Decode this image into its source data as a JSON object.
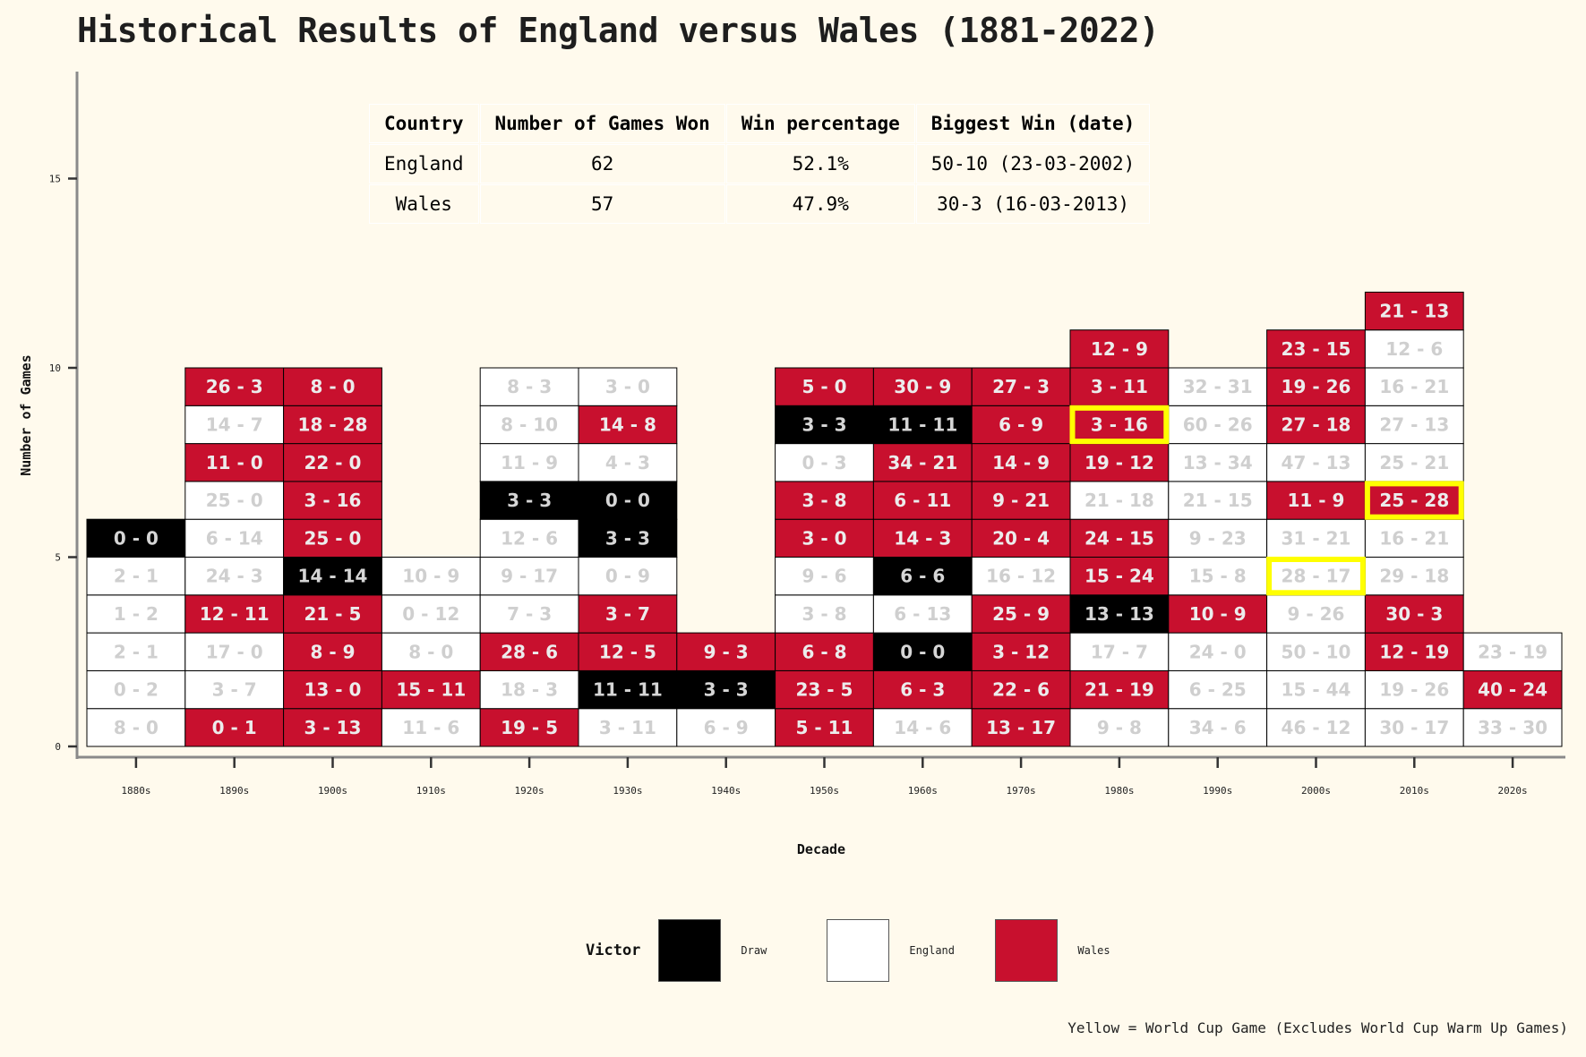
{
  "title": "Historical Results of England versus Wales (1881-2022)",
  "colors": {
    "background": "#fffaed",
    "draw": "#000000",
    "england": "#ffffff",
    "wales": "#c8102e",
    "world_cup_highlight": "#ffff00",
    "label_on_dark": "#ececec",
    "label_on_white": "#cfcfcf",
    "label_on_draw": "#d6d6d6"
  },
  "summary_table": {
    "headers": [
      "Country",
      "Number of Games Won",
      "Win percentage",
      "Biggest Win (date)"
    ],
    "rows": [
      [
        "England",
        "62",
        "52.1%",
        "50-10 (23-03-2002)"
      ],
      [
        "Wales",
        "57",
        "47.9%",
        "30-3 (16-03-2013)"
      ]
    ]
  },
  "legend": {
    "title": "Victor",
    "items": [
      {
        "label": "Draw",
        "key": "D"
      },
      {
        "label": "England",
        "key": "E"
      },
      {
        "label": "Wales",
        "key": "W"
      }
    ]
  },
  "footnote": "Yellow = World Cup Game (Excludes World Cup Warm Up Games)",
  "chart_data": {
    "type": "stacked tile bar",
    "title": "Historical Results of England versus Wales (1881-2022)",
    "xlabel": "Decade",
    "ylabel": "Number of Games",
    "ylim": [
      0,
      18
    ],
    "yticks": [
      0,
      5,
      10,
      15
    ],
    "categories": [
      "1880s",
      "1890s",
      "1900s",
      "1910s",
      "1920s",
      "1930s",
      "1940s",
      "1950s",
      "1960s",
      "1970s",
      "1980s",
      "1990s",
      "2000s",
      "2010s",
      "2020s"
    ],
    "victor_codes": {
      "D": "Draw",
      "E": "England",
      "W": "Wales"
    },
    "games": [
      [
        [
          "8 - 0",
          "E"
        ],
        [
          "0 - 2",
          "E"
        ],
        [
          "2 - 1",
          "E"
        ],
        [
          "1 - 2",
          "E"
        ],
        [
          "2 - 1",
          "E"
        ],
        [
          "0 - 0",
          "D"
        ]
      ],
      [
        [
          "0 - 1",
          "W"
        ],
        [
          "3 - 7",
          "E"
        ],
        [
          "17 - 0",
          "E"
        ],
        [
          "12 - 11",
          "W"
        ],
        [
          "24 - 3",
          "E"
        ],
        [
          "6 - 14",
          "E"
        ],
        [
          "25 - 0",
          "E"
        ],
        [
          "11 - 0",
          "W"
        ],
        [
          "14 - 7",
          "E"
        ],
        [
          "26 - 3",
          "W"
        ]
      ],
      [
        [
          "3 - 13",
          "W"
        ],
        [
          "13 - 0",
          "W"
        ],
        [
          "8 - 9",
          "W"
        ],
        [
          "21 - 5",
          "W"
        ],
        [
          "14 - 14",
          "D"
        ],
        [
          "25 - 0",
          "W"
        ],
        [
          "3 - 16",
          "W"
        ],
        [
          "22 - 0",
          "W"
        ],
        [
          "18 - 28",
          "W"
        ],
        [
          "8 - 0",
          "W"
        ]
      ],
      [
        [
          "11 - 6",
          "E"
        ],
        [
          "15 - 11",
          "W"
        ],
        [
          "8 - 0",
          "E"
        ],
        [
          "0 - 12",
          "E"
        ],
        [
          "10 - 9",
          "E"
        ]
      ],
      [
        [
          "19 - 5",
          "W"
        ],
        [
          "18 - 3",
          "E"
        ],
        [
          "28 - 6",
          "W"
        ],
        [
          "7 - 3",
          "E"
        ],
        [
          "9 - 17",
          "E"
        ],
        [
          "12 - 6",
          "E"
        ],
        [
          "3 - 3",
          "D"
        ],
        [
          "11 - 9",
          "E"
        ],
        [
          "8 - 10",
          "E"
        ],
        [
          "8 - 3",
          "E"
        ]
      ],
      [
        [
          "3 - 11",
          "E"
        ],
        [
          "11 - 11",
          "D"
        ],
        [
          "12 - 5",
          "W"
        ],
        [
          "3 - 7",
          "W"
        ],
        [
          "0 - 9",
          "E"
        ],
        [
          "3 - 3",
          "D"
        ],
        [
          "0 - 0",
          "D"
        ],
        [
          "4 - 3",
          "E"
        ],
        [
          "14 - 8",
          "W"
        ],
        [
          "3 - 0",
          "E"
        ]
      ],
      [
        [
          "6 - 9",
          "E"
        ],
        [
          "3 - 3",
          "D"
        ],
        [
          "9 - 3",
          "W"
        ]
      ],
      [
        [
          "5 - 11",
          "W"
        ],
        [
          "23 - 5",
          "W"
        ],
        [
          "6 - 8",
          "W"
        ],
        [
          "3 - 8",
          "E"
        ],
        [
          "9 - 6",
          "E"
        ],
        [
          "3 - 0",
          "W"
        ],
        [
          "3 - 8",
          "W"
        ],
        [
          "0 - 3",
          "E"
        ],
        [
          "3 - 3",
          "D"
        ],
        [
          "5 - 0",
          "W"
        ]
      ],
      [
        [
          "14 - 6",
          "E"
        ],
        [
          "6 - 3",
          "W"
        ],
        [
          "0 - 0",
          "D"
        ],
        [
          "6 - 13",
          "E"
        ],
        [
          "6 - 6",
          "D"
        ],
        [
          "14 - 3",
          "W"
        ],
        [
          "6 - 11",
          "W"
        ],
        [
          "34 - 21",
          "W"
        ],
        [
          "11 - 11",
          "D"
        ],
        [
          "30 - 9",
          "W"
        ]
      ],
      [
        [
          "13 - 17",
          "W"
        ],
        [
          "22 - 6",
          "W"
        ],
        [
          "3 - 12",
          "W"
        ],
        [
          "25 - 9",
          "W"
        ],
        [
          "16 - 12",
          "E"
        ],
        [
          "20 - 4",
          "W"
        ],
        [
          "9 - 21",
          "W"
        ],
        [
          "14 - 9",
          "W"
        ],
        [
          "6 - 9",
          "W"
        ],
        [
          "27 - 3",
          "W"
        ]
      ],
      [
        [
          "9 - 8",
          "E"
        ],
        [
          "21 - 19",
          "W"
        ],
        [
          "17 - 7",
          "E"
        ],
        [
          "13 - 13",
          "D"
        ],
        [
          "15 - 24",
          "W"
        ],
        [
          "24 - 15",
          "W"
        ],
        [
          "21 - 18",
          "E"
        ],
        [
          "19 - 12",
          "W"
        ],
        [
          "3 - 16",
          "W",
          true
        ],
        [
          "3 - 11",
          "W"
        ],
        [
          "12 - 9",
          "W"
        ]
      ],
      [
        [
          "34 - 6",
          "E"
        ],
        [
          "6 - 25",
          "E"
        ],
        [
          "24 - 0",
          "E"
        ],
        [
          "10 - 9",
          "W"
        ],
        [
          "15 - 8",
          "E"
        ],
        [
          "9 - 23",
          "E"
        ],
        [
          "21 - 15",
          "E"
        ],
        [
          "13 - 34",
          "E"
        ],
        [
          "60 - 26",
          "E"
        ],
        [
          "32 - 31",
          "E"
        ]
      ],
      [
        [
          "46 - 12",
          "E"
        ],
        [
          "15 - 44",
          "E"
        ],
        [
          "50 - 10",
          "E"
        ],
        [
          "9 - 26",
          "E"
        ],
        [
          "28 - 17",
          "E",
          true
        ],
        [
          "31 - 21",
          "E"
        ],
        [
          "11 - 9",
          "W"
        ],
        [
          "47 - 13",
          "E"
        ],
        [
          "27 - 18",
          "W"
        ],
        [
          "19 - 26",
          "W"
        ],
        [
          "23 - 15",
          "W"
        ]
      ],
      [
        [
          "30 - 17",
          "E"
        ],
        [
          "19 - 26",
          "E"
        ],
        [
          "12 - 19",
          "W"
        ],
        [
          "30 - 3",
          "W"
        ],
        [
          "29 - 18",
          "E"
        ],
        [
          "16 - 21",
          "E"
        ],
        [
          "25 - 28",
          "W",
          true
        ],
        [
          "25 - 21",
          "E"
        ],
        [
          "27 - 13",
          "E"
        ],
        [
          "16 - 21",
          "E"
        ],
        [
          "12 - 6",
          "E"
        ],
        [
          "21 - 13",
          "W"
        ]
      ],
      [
        [
          "33 - 30",
          "E"
        ],
        [
          "40 - 24",
          "W"
        ],
        [
          "23 - 19",
          "E"
        ]
      ]
    ]
  }
}
